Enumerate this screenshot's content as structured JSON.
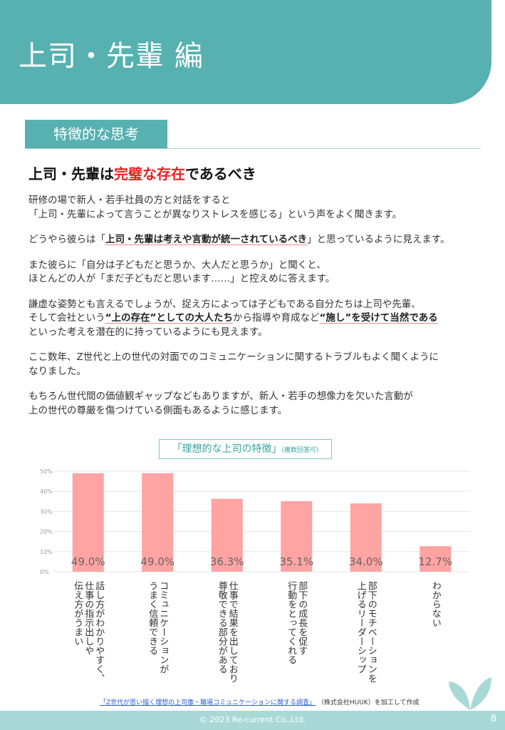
{
  "header": {
    "title": "上司・先輩 編"
  },
  "section": {
    "label": "特徴的な思考"
  },
  "heading": {
    "pre": "上司・先輩は",
    "highlight": "完璧な存在",
    "post": "であるべき",
    "highlight_color": "#e8211f"
  },
  "paragraphs": [
    [
      [
        {
          "t": "研修の場で新人・若手社員の方と対話をすると"
        }
      ],
      [
        {
          "t": "「上司・先輩によって言うことが異なりストレスを感じる」という声をよく聞きます。"
        }
      ]
    ],
    [
      [
        {
          "t": "どうやら彼らは「"
        },
        {
          "t": "上司・先輩は考えや言動が統一されているべき",
          "em": true
        },
        {
          "t": "」と思っているように見えます。"
        }
      ]
    ],
    [
      [
        {
          "t": "また彼らに「自分は子どもだと思うか、大人だと思うか」と聞くと、"
        }
      ],
      [
        {
          "t": "ほとんどの人が「まだ子どもだと思います……」と控えめに答えます。"
        }
      ]
    ],
    [
      [
        {
          "t": "謙虚な姿勢とも言えるでしょうが、捉え方によっては子どもである自分たちは上司や先輩、"
        }
      ],
      [
        {
          "t": "そして会社という"
        },
        {
          "t": "“上の存在”としての大人たち",
          "em": true
        },
        {
          "t": "から指導や育成など"
        },
        {
          "t": "“施し”を受けて当然である",
          "em": true
        }
      ],
      [
        {
          "t": "といった考えを潜在的に持っているようにも見えます。"
        }
      ]
    ],
    [
      [
        {
          "t": "ここ数年、Z世代と上の世代の対面でのコミュニケーションに関するトラブルもよく聞くように"
        }
      ],
      [
        {
          "t": "なりました。"
        }
      ]
    ],
    [
      [
        {
          "t": "もちろん世代間の価値観ギャップなどもありますが、新人・若手の想像力を欠いた言動が"
        }
      ],
      [
        {
          "t": "上の世代の尊厳を傷つけている側面もあるように感じます。"
        }
      ]
    ]
  ],
  "chart_data": {
    "type": "bar",
    "title": "「理想的な上司の特徴」",
    "subtitle": "(複数回答可)",
    "categories": [
      "話し方がわかりやすく、仕事の指示出しや伝え方がうまい",
      "コミュニケーションがうまく信頼できる",
      "仕事で結果を出しており尊敬できる部分がある",
      "部下の成長を促す行動をとってくれる",
      "部下のモチベーションを上げるリーダーシップ",
      "わからない"
    ],
    "category_lines": [
      [
        "話し方がわかりやすく、",
        "仕事の指示出しや",
        "伝え方がうまい"
      ],
      [
        "コミュニケーションが",
        "うまく信頼できる"
      ],
      [
        "仕事で結果を出しており",
        "尊敬できる部分がある"
      ],
      [
        "部下の成長を促す",
        "行動をとってくれる"
      ],
      [
        "部下のモチベーションを",
        "上げるリーダーシップ"
      ],
      [
        "わからない"
      ]
    ],
    "values": [
      49.0,
      49.0,
      36.3,
      35.1,
      34.0,
      12.7
    ],
    "data_labels": [
      "49.0%",
      "49.0%",
      "36.3%",
      "35.1%",
      "34.0%",
      "12.7%"
    ],
    "yticks": [
      "0%",
      "10%",
      "20%",
      "30%",
      "40%",
      "50%"
    ],
    "ylim": [
      0,
      50
    ],
    "grid": true,
    "bar_color": "#FFA3A3"
  },
  "source": {
    "link": "「Z世代が思い描く理想の上司像・職場コミュニケーションに関する調査」",
    "suffix": "（株式会社HUUK）を加工して作成"
  },
  "footer": {
    "copyright": "© 2023 Re-current Co.,Ltd.",
    "page": "8"
  },
  "colors": {
    "brand": "#56B1B0",
    "footer": "#A9D9D6"
  }
}
